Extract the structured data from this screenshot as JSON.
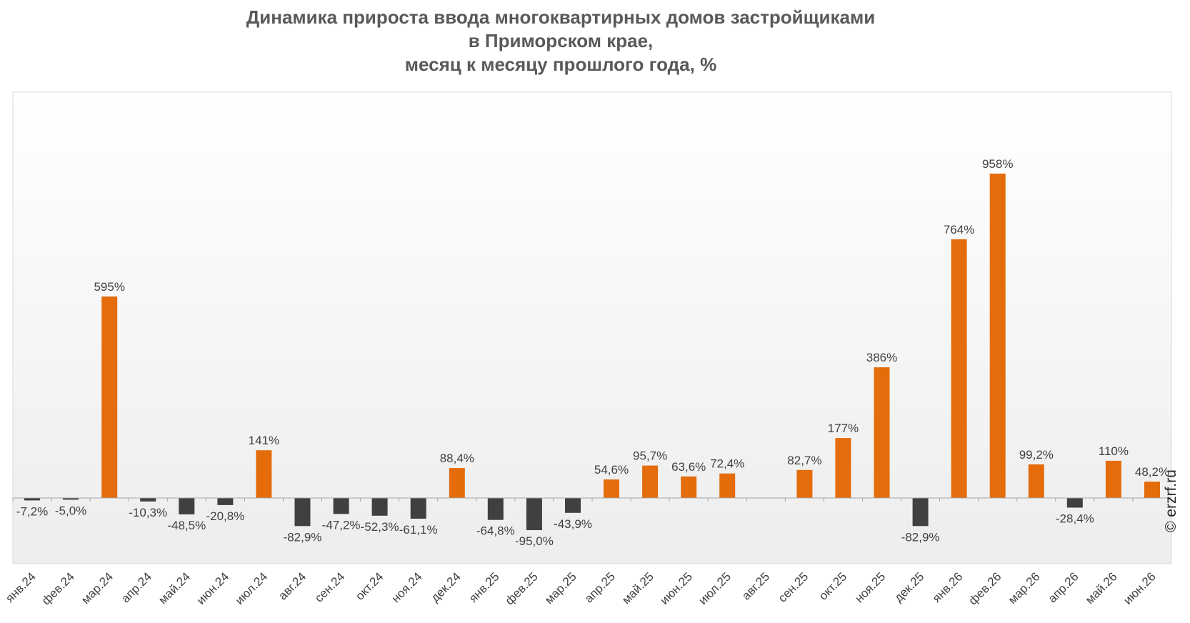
{
  "chart_data": {
    "type": "bar",
    "title_lines": [
      "Динамика прироста ввода многоквартирных домов застройщиками",
      "в Приморском крае,",
      "месяц к месяцу прошлого года, %"
    ],
    "categories": [
      "янв.24",
      "фев.24",
      "мар.24",
      "апр.24",
      "май.24",
      "июн.24",
      "июл.24",
      "авг.24",
      "сен.24",
      "окт.24",
      "ноя.24",
      "дек.24",
      "янв.25",
      "фев.25",
      "мар.25",
      "апр.25",
      "май.25",
      "июн.25",
      "июл.25",
      "авг.25",
      "сен.25",
      "окт.25",
      "ноя.25",
      "дек.25",
      "янв.26",
      "фев.26",
      "мар.26",
      "апр.26",
      "май.26",
      "июн.26"
    ],
    "values": [
      -7.2,
      -5.0,
      595,
      -10.3,
      -48.5,
      -20.8,
      141,
      -82.9,
      -47.2,
      -52.3,
      -61.1,
      88.4,
      -64.8,
      -95.0,
      -43.9,
      54.6,
      95.7,
      63.6,
      72.4,
      null,
      82.7,
      177,
      386,
      -82.9,
      764,
      958,
      99.2,
      -28.4,
      110,
      48.2
    ],
    "labels": [
      "-7,2%",
      "-5,0%",
      "595%",
      "-10,3%",
      "-48,5%",
      "-20,8%",
      "141%",
      "-82,9%",
      "-47,2%",
      "-52,3%",
      "-61,1%",
      "88,4%",
      "-64,8%",
      "-95,0%",
      "-43,9%",
      "54,6%",
      "95,7%",
      "63,6%",
      "72,4%",
      "",
      "82,7%",
      "177%",
      "386%",
      "-82,9%",
      "764%",
      "958%",
      "99,2%",
      "-28,4%",
      "110%",
      "48,2%"
    ],
    "ylim": [
      -200,
      1200
    ],
    "grid": false,
    "colors": {
      "positive": "#E46C0A",
      "negative": "#404040",
      "axis": "#A6A6A6",
      "plot_gradient_top": "#FFFFFF",
      "plot_gradient_bottom": "#EDEDED",
      "text": "#404040",
      "title": "#595959"
    }
  },
  "watermark": "© erzrf.ru"
}
